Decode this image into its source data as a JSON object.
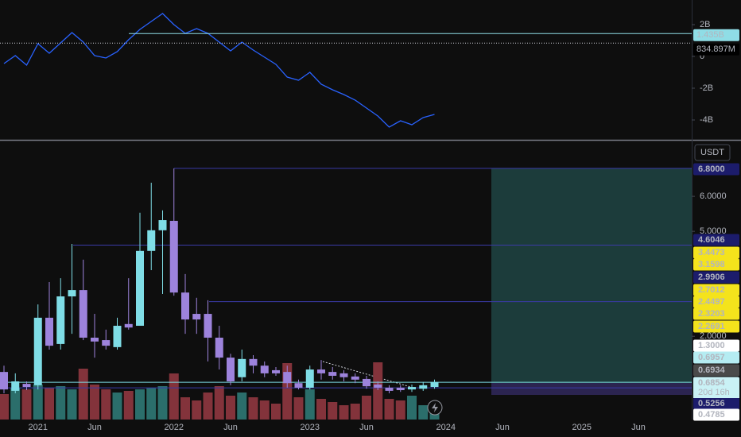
{
  "chart_data": [
    {
      "type": "line",
      "series": [
        {
          "color": "#2962ff",
          "values": [
            -450000000,
            50000000,
            -550000000,
            800000000,
            200000000,
            850000000,
            1500000000,
            900000000,
            50000000,
            -100000000,
            300000000,
            1050000000,
            1700000000,
            2200000000,
            2700000000,
            2000000000,
            1450000000,
            1750000000,
            1450000000,
            900000000,
            350000000,
            900000000,
            400000000,
            -50000000,
            -500000000,
            -1300000000,
            -1500000000,
            -1000000000,
            -1750000000,
            -2100000000,
            -2400000000,
            -2750000000,
            -3250000000,
            -3750000000,
            -4450000000,
            -4050000000,
            -4300000000,
            -3850000000,
            -3650000000
          ]
        }
      ],
      "ylim": [
        -5250000000,
        3550000000
      ],
      "yticks": [
        {
          "value": 2000000000,
          "label": "2B"
        },
        {
          "value": 0,
          "label": "0"
        },
        {
          "value": -2000000000,
          "label": "-2B"
        },
        {
          "value": -4000000000,
          "label": "-4B"
        }
      ],
      "price_lines": [
        {
          "value": 1435000000,
          "label": "1.435B",
          "color": "#8fdde6",
          "text_color": "#131722"
        },
        {
          "value": 834897000,
          "label": "834.897M",
          "color": "#000000",
          "text_color": "#ffffff"
        }
      ]
    },
    {
      "type": "candlestick",
      "currency": "USDT",
      "categories": [
        null,
        null,
        null,
        "2021",
        null,
        null,
        null,
        null,
        "Jun",
        null,
        null,
        null,
        null,
        null,
        null,
        "2022",
        null,
        null,
        null,
        null,
        "Jun",
        null,
        null,
        null,
        null,
        null,
        null,
        "2023",
        null,
        null,
        null,
        null,
        "Jun",
        null,
        null,
        null,
        null,
        null,
        null,
        "2024",
        null,
        null,
        null,
        null,
        "Jun",
        null,
        null,
        null,
        null,
        null,
        null,
        "2025",
        null,
        null,
        null,
        null,
        "Jun"
      ],
      "open": [
        0.98,
        0.44,
        0.64,
        0.6,
        2.53,
        1.78,
        3.14,
        3.32,
        1.96,
        1.89,
        1.69,
        2.35,
        2.3,
        4.44,
        5.03,
        5.3,
        3.25,
        2.64,
        2.64,
        1.96,
        1.39,
        0.83,
        1.35,
        1.16,
        1.03,
        0.98,
        0.66,
        0.53,
        1.05,
        0.98,
        0.94,
        0.85,
        0.78,
        0.62,
        0.53,
        0.53,
        0.48,
        0.5,
        0.55,
        null,
        null,
        null,
        null,
        null,
        null,
        null,
        null,
        null,
        null,
        null,
        null,
        null,
        null,
        null,
        null,
        null,
        null
      ],
      "high": [
        1.16,
        0.94,
        0.71,
        2.91,
        3.55,
        3.66,
        4.64,
        4.19,
        2.64,
        2.19,
        2.53,
        3.66,
        5.53,
        6.39,
        5.6,
        6.8,
        3.78,
        3.1,
        3.03,
        2.3,
        1.5,
        1.62,
        1.46,
        1.28,
        1.12,
        1.16,
        0.76,
        1.16,
        1.32,
        1.12,
        1.03,
        0.94,
        0.87,
        0.71,
        0.6,
        0.6,
        0.62,
        0.69,
        0.76,
        null,
        null,
        null,
        null,
        null,
        null,
        null,
        null,
        null,
        null,
        null,
        null,
        null,
        null,
        null,
        null,
        null,
        null
      ],
      "low": [
        0.37,
        0.37,
        0.46,
        0.48,
        1.62,
        1.62,
        2.07,
        1.89,
        1.39,
        1.62,
        1.62,
        2.19,
        2.3,
        3.89,
        3.21,
        3.16,
        2.07,
        2.07,
        1.28,
        1.05,
        0.6,
        0.71,
        0.94,
        0.83,
        0.87,
        0.53,
        0.48,
        0.48,
        0.76,
        0.76,
        0.71,
        0.66,
        0.5,
        0.46,
        0.37,
        0.41,
        0.41,
        0.44,
        0.5,
        null,
        null,
        null,
        null,
        null,
        null,
        null,
        null,
        null,
        null,
        null,
        null,
        null,
        null,
        null,
        null,
        null,
        null
      ],
      "close": [
        0.48,
        0.71,
        0.55,
        2.53,
        1.73,
        3.14,
        3.32,
        1.96,
        1.85,
        1.73,
        2.3,
        2.25,
        4.44,
        5.03,
        5.32,
        3.25,
        2.48,
        2.48,
        1.96,
        1.39,
        0.71,
        1.35,
        1.16,
        0.94,
        0.94,
        0.66,
        0.53,
        1.05,
        0.94,
        0.87,
        0.83,
        0.76,
        0.57,
        0.53,
        0.44,
        0.46,
        0.55,
        0.6,
        0.69,
        null,
        null,
        null,
        null,
        null,
        null,
        null,
        null,
        null,
        null,
        null,
        null,
        null,
        null,
        null,
        null,
        null,
        null
      ],
      "volume": [
        32,
        40,
        38,
        44,
        40,
        42,
        38,
        64,
        44,
        38,
        34,
        36,
        38,
        40,
        42,
        58,
        28,
        24,
        34,
        42,
        30,
        34,
        28,
        24,
        20,
        71,
        28,
        38,
        26,
        22,
        18,
        20,
        30,
        72,
        26,
        24,
        30,
        18,
        10,
        null,
        null,
        null,
        null,
        null,
        null,
        null,
        null,
        null,
        null,
        null,
        null,
        null,
        null,
        null,
        null,
        null,
        null
      ],
      "up_color": "#7fdde6",
      "down_color": "#9d83dc",
      "volume_up_color": "#2b6e6b",
      "volume_down_color": "#83333b",
      "ylim": [
        -0.38,
        7.57
      ],
      "vlim": [
        0,
        100
      ],
      "yticks": [
        {
          "value": 6,
          "label": "6.0000"
        },
        {
          "value": 5,
          "label": "5.0000"
        },
        {
          "value": 2,
          "label": "2.0000"
        }
      ],
      "price_labels": [
        {
          "value": 6.8,
          "label": "6.8000",
          "color": "#1c1c6b",
          "text_color": "#ffffff"
        },
        {
          "value": 4.6046,
          "label": "4.6046",
          "color": "#1c1c6b",
          "text_color": "#ffffff"
        },
        {
          "value": 3.4473,
          "label": "3.4473",
          "color": "#f4e31c",
          "text_color": "#131722"
        },
        {
          "value": 3.1598,
          "label": "3.1598",
          "color": "#f4e31c",
          "text_color": "#131722"
        },
        {
          "value": 2.9906,
          "label": "2.9906",
          "color": "#1c1c6b",
          "text_color": "#ffffff"
        },
        {
          "value": 2.7012,
          "label": "2.7012",
          "color": "#f4e31c",
          "text_color": "#131722"
        },
        {
          "value": 2.4497,
          "label": "2.4497",
          "color": "#f4e31c",
          "text_color": "#131722"
        },
        {
          "value": 2.3203,
          "label": "2.3203",
          "color": "#f4e31c",
          "text_color": "#131722"
        },
        {
          "value": 2.2691,
          "label": "2.2691",
          "color": "#f4e31c",
          "text_color": "#131722"
        },
        {
          "value": 1.3,
          "label": "1.3000",
          "color": "#ffffff",
          "text_color": "#131722"
        },
        {
          "value": 0.6957,
          "label": "0.6957",
          "color": "#b5ecf2",
          "text_color": "#131722"
        },
        {
          "value": 0.6934,
          "label": "0.6934",
          "color": "#4a4a4a",
          "text_color": "#ffffff"
        },
        {
          "value": 0.6854,
          "label": "0.6854",
          "color": "#c9f1f5",
          "text_color": "#131722"
        },
        {
          "value": 0.5256,
          "label": "0.5256",
          "color": "#1c1c6b",
          "text_color": "#ffffff"
        },
        {
          "value": 0.4785,
          "label": "0.4785",
          "color": "#ffffff",
          "text_color": "#131722"
        }
      ],
      "countdown": "20d 16h"
    }
  ]
}
